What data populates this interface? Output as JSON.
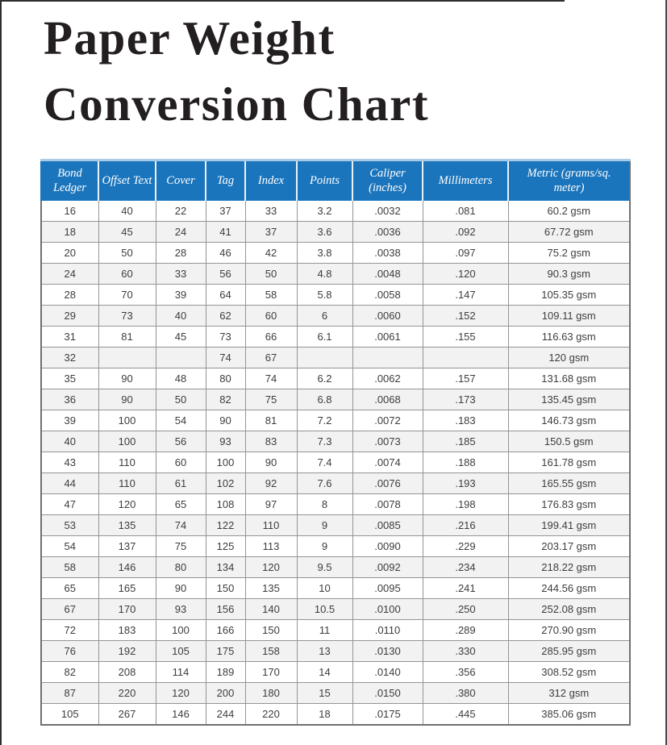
{
  "page": {
    "title_line1": "Paper Weight",
    "title_line2": "Conversion Chart"
  },
  "colors": {
    "header_bg": "#1b75bc",
    "header_text": "#ffffff",
    "header_top_accent": "#a9cbe5",
    "row_alt_bg": "#f2f2f2",
    "grid_border": "#949494",
    "title_text": "#231f20"
  },
  "table": {
    "columns": [
      "Bond Ledger",
      "Offset Text",
      "Cover",
      "Tag",
      "Index",
      "Points",
      "Caliper (inches)",
      "Millimeters",
      "Metric (grams/sq. meter)"
    ],
    "rows": [
      [
        "16",
        "40",
        "22",
        "37",
        "33",
        "3.2",
        ".0032",
        ".081",
        "60.2 gsm"
      ],
      [
        "18",
        "45",
        "24",
        "41",
        "37",
        "3.6",
        ".0036",
        ".092",
        "67.72 gsm"
      ],
      [
        "20",
        "50",
        "28",
        "46",
        "42",
        "3.8",
        ".0038",
        ".097",
        "75.2 gsm"
      ],
      [
        "24",
        "60",
        "33",
        "56",
        "50",
        "4.8",
        ".0048",
        ".120",
        "90.3 gsm"
      ],
      [
        "28",
        "70",
        "39",
        "64",
        "58",
        "5.8",
        ".0058",
        ".147",
        "105.35 gsm"
      ],
      [
        "29",
        "73",
        "40",
        "62",
        "60",
        "6",
        ".0060",
        ".152",
        "109.11 gsm"
      ],
      [
        "31",
        "81",
        "45",
        "73",
        "66",
        "6.1",
        ".0061",
        ".155",
        "116.63 gsm"
      ],
      [
        "32",
        "",
        "",
        "74",
        "67",
        "",
        "",
        "",
        "120 gsm"
      ],
      [
        "35",
        "90",
        "48",
        "80",
        "74",
        "6.2",
        ".0062",
        ".157",
        "131.68 gsm"
      ],
      [
        "36",
        "90",
        "50",
        "82",
        "75",
        "6.8",
        ".0068",
        ".173",
        "135.45 gsm"
      ],
      [
        "39",
        "100",
        "54",
        "90",
        "81",
        "7.2",
        ".0072",
        ".183",
        "146.73 gsm"
      ],
      [
        "40",
        "100",
        "56",
        "93",
        "83",
        "7.3",
        ".0073",
        ".185",
        "150.5 gsm"
      ],
      [
        "43",
        "110",
        "60",
        "100",
        "90",
        "7.4",
        ".0074",
        ".188",
        "161.78 gsm"
      ],
      [
        "44",
        "110",
        "61",
        "102",
        "92",
        "7.6",
        ".0076",
        ".193",
        "165.55 gsm"
      ],
      [
        "47",
        "120",
        "65",
        "108",
        "97",
        "8",
        ".0078",
        ".198",
        "176.83 gsm"
      ],
      [
        "53",
        "135",
        "74",
        "122",
        "110",
        "9",
        ".0085",
        ".216",
        "199.41 gsm"
      ],
      [
        "54",
        "137",
        "75",
        "125",
        "113",
        "9",
        ".0090",
        ".229",
        "203.17 gsm"
      ],
      [
        "58",
        "146",
        "80",
        "134",
        "120",
        "9.5",
        ".0092",
        ".234",
        "218.22 gsm"
      ],
      [
        "65",
        "165",
        "90",
        "150",
        "135",
        "10",
        ".0095",
        ".241",
        "244.56 gsm"
      ],
      [
        "67",
        "170",
        "93",
        "156",
        "140",
        "10.5",
        ".0100",
        ".250",
        "252.08 gsm"
      ],
      [
        "72",
        "183",
        "100",
        "166",
        "150",
        "11",
        ".0110",
        ".289",
        "270.90 gsm"
      ],
      [
        "76",
        "192",
        "105",
        "175",
        "158",
        "13",
        ".0130",
        ".330",
        "285.95 gsm"
      ],
      [
        "82",
        "208",
        "114",
        "189",
        "170",
        "14",
        ".0140",
        ".356",
        "308.52 gsm"
      ],
      [
        "87",
        "220",
        "120",
        "200",
        "180",
        "15",
        ".0150",
        ".380",
        "312 gsm"
      ],
      [
        "105",
        "267",
        "146",
        "244",
        "220",
        "18",
        ".0175",
        ".445",
        "385.06 gsm"
      ]
    ]
  }
}
